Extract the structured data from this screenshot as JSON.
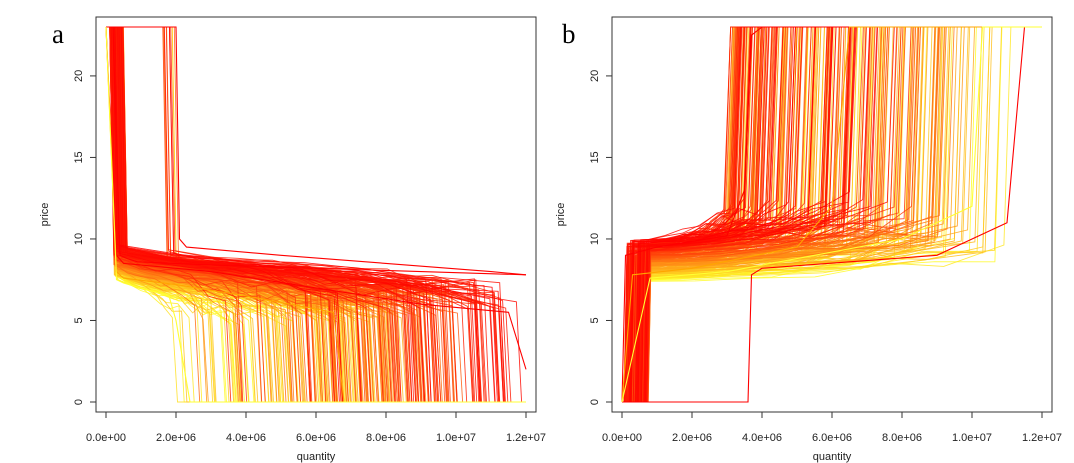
{
  "colors": {
    "low": "#ffff33",
    "mid": "#ffa500",
    "high": "#ff0000",
    "axis": "#333333"
  },
  "chart_data": [
    {
      "type": "line",
      "panel": "a",
      "description_direction": "decreasing",
      "xlabel": "quantity",
      "ylabel": "price",
      "xlim": [
        0,
        12000000
      ],
      "ylim": [
        0,
        23
      ],
      "x_ticks": [
        0,
        2000000,
        4000000,
        6000000,
        8000000,
        10000000,
        12000000
      ],
      "x_tick_labels": [
        "0.0e+00",
        "2.0e+06",
        "4.0e+06",
        "6.0e+06",
        "8.0e+06",
        "1.0e+07",
        "1.2e+07"
      ],
      "y_ticks": [
        0,
        5,
        10,
        15,
        20
      ],
      "y_tick_labels": [
        "0",
        "5",
        "10",
        "15",
        "20"
      ],
      "grid": false,
      "series_count": 300,
      "color_scale": "yellow to red",
      "series": [
        {
          "color": "red",
          "x": [
            0,
            200000,
            400000,
            600000,
            900000,
            3000000,
            6000000,
            9000000,
            12000000
          ],
          "y": [
            23,
            23,
            9,
            8.8,
            8.6,
            8.4,
            8.2,
            8.0,
            7.8
          ]
        },
        {
          "color": "red",
          "x": [
            0,
            2000000,
            2100000,
            2300000,
            5000000,
            8000000,
            11000000,
            12000000
          ],
          "y": [
            23,
            23,
            10,
            9.5,
            9,
            8.5,
            8,
            7.8
          ]
        },
        {
          "color": "red",
          "x": [
            0,
            300000,
            500000,
            3000000,
            6000000,
            9000000,
            11500000,
            12000000
          ],
          "y": [
            23,
            9,
            8.5,
            8,
            7,
            6,
            5.5,
            2
          ]
        },
        {
          "color": "orange",
          "x": [
            0,
            300000,
            500000,
            2000000,
            4000000,
            6500000,
            6800000,
            12000000
          ],
          "y": [
            23,
            8,
            7.6,
            7.2,
            6.5,
            5.5,
            0,
            0
          ]
        },
        {
          "color": "yellow",
          "x": [
            0,
            300000,
            500000,
            1800000,
            2000000,
            2400000,
            12000000
          ],
          "y": [
            23,
            7.5,
            7.3,
            6.5,
            5,
            0,
            0
          ]
        }
      ]
    },
    {
      "type": "line",
      "panel": "b",
      "description_direction": "increasing",
      "xlabel": "quantity",
      "ylabel": "price",
      "xlim": [
        0,
        12000000
      ],
      "ylim": [
        0,
        23
      ],
      "x_ticks": [
        0,
        2000000,
        4000000,
        6000000,
        8000000,
        10000000,
        12000000
      ],
      "x_tick_labels": [
        "0.0e+00",
        "2.0e+06",
        "4.0e+06",
        "6.0e+06",
        "8.0e+06",
        "1.0e+07",
        "1.2e+07"
      ],
      "y_ticks": [
        0,
        5,
        10,
        15,
        20
      ],
      "y_tick_labels": [
        "0",
        "5",
        "10",
        "15",
        "20"
      ],
      "grid": false,
      "series_count": 300,
      "color_scale": "yellow to red",
      "series": [
        {
          "color": "red",
          "x": [
            0,
            100000,
            1000000,
            3000000,
            3500000,
            3700000,
            4000000,
            12000000
          ],
          "y": [
            0,
            9,
            9.5,
            10.2,
            13,
            22.5,
            23,
            23
          ]
        },
        {
          "color": "red",
          "x": [
            0,
            1000000,
            3600000,
            3700000,
            4000000,
            9000000,
            11000000,
            11500000
          ],
          "y": [
            0,
            0,
            0,
            7.8,
            8.2,
            9,
            11,
            23
          ]
        },
        {
          "color": "orange",
          "x": [
            0,
            300000,
            2000000,
            5000000,
            6000000,
            6500000,
            12000000
          ],
          "y": [
            0,
            7.8,
            8.2,
            9.5,
            12,
            23,
            23
          ]
        },
        {
          "color": "yellow",
          "x": [
            0,
            800000,
            3000000,
            8000000,
            10000000,
            10300000,
            12000000
          ],
          "y": [
            0,
            7.6,
            8,
            10,
            12,
            23,
            23
          ]
        }
      ]
    }
  ]
}
